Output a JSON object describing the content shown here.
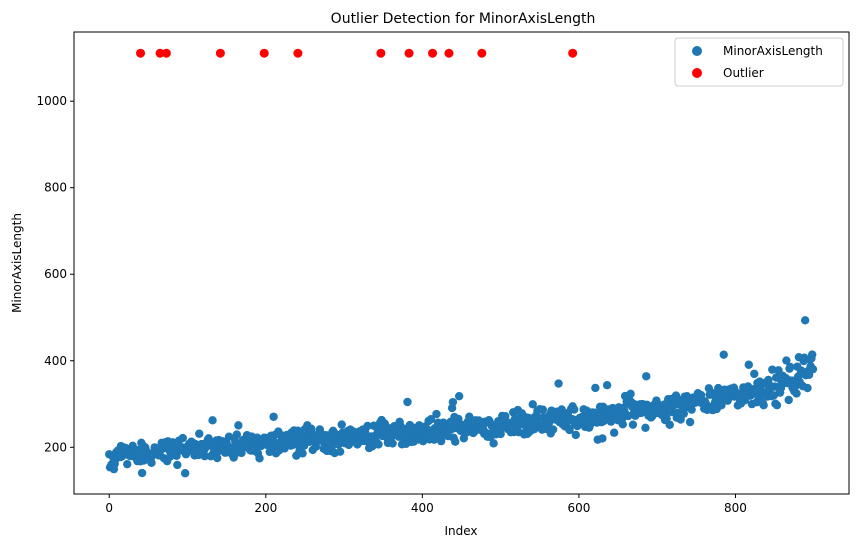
{
  "chart_data": {
    "type": "scatter",
    "title": "Outlier Detection for MinorAxisLength",
    "xlabel": "Index",
    "ylabel": "MinorAxisLength",
    "xlim": [
      -45,
      945
    ],
    "ylim": [
      92,
      1160
    ],
    "xticks": [
      0,
      200,
      400,
      600,
      800
    ],
    "yticks": [
      200,
      400,
      600,
      800,
      1000
    ],
    "legend_position": "top-right",
    "grid": false,
    "series": [
      {
        "name": "MinorAxisLength",
        "color": "#1f77b4",
        "generated": true,
        "n": 900,
        "description_points": "smooth upward trend from ~145 at index 0 to ~390 at index 899 with scatter of roughly ±30"
      },
      {
        "name": "Outlier",
        "color": "#ff0000",
        "x": [
          40,
          65,
          73,
          142,
          198,
          241,
          347,
          383,
          413,
          434,
          476,
          592
        ],
        "y": [
          1111,
          1111,
          1111,
          1111,
          1111,
          1111,
          1111,
          1111,
          1111,
          1111,
          1111,
          1111
        ]
      }
    ]
  }
}
